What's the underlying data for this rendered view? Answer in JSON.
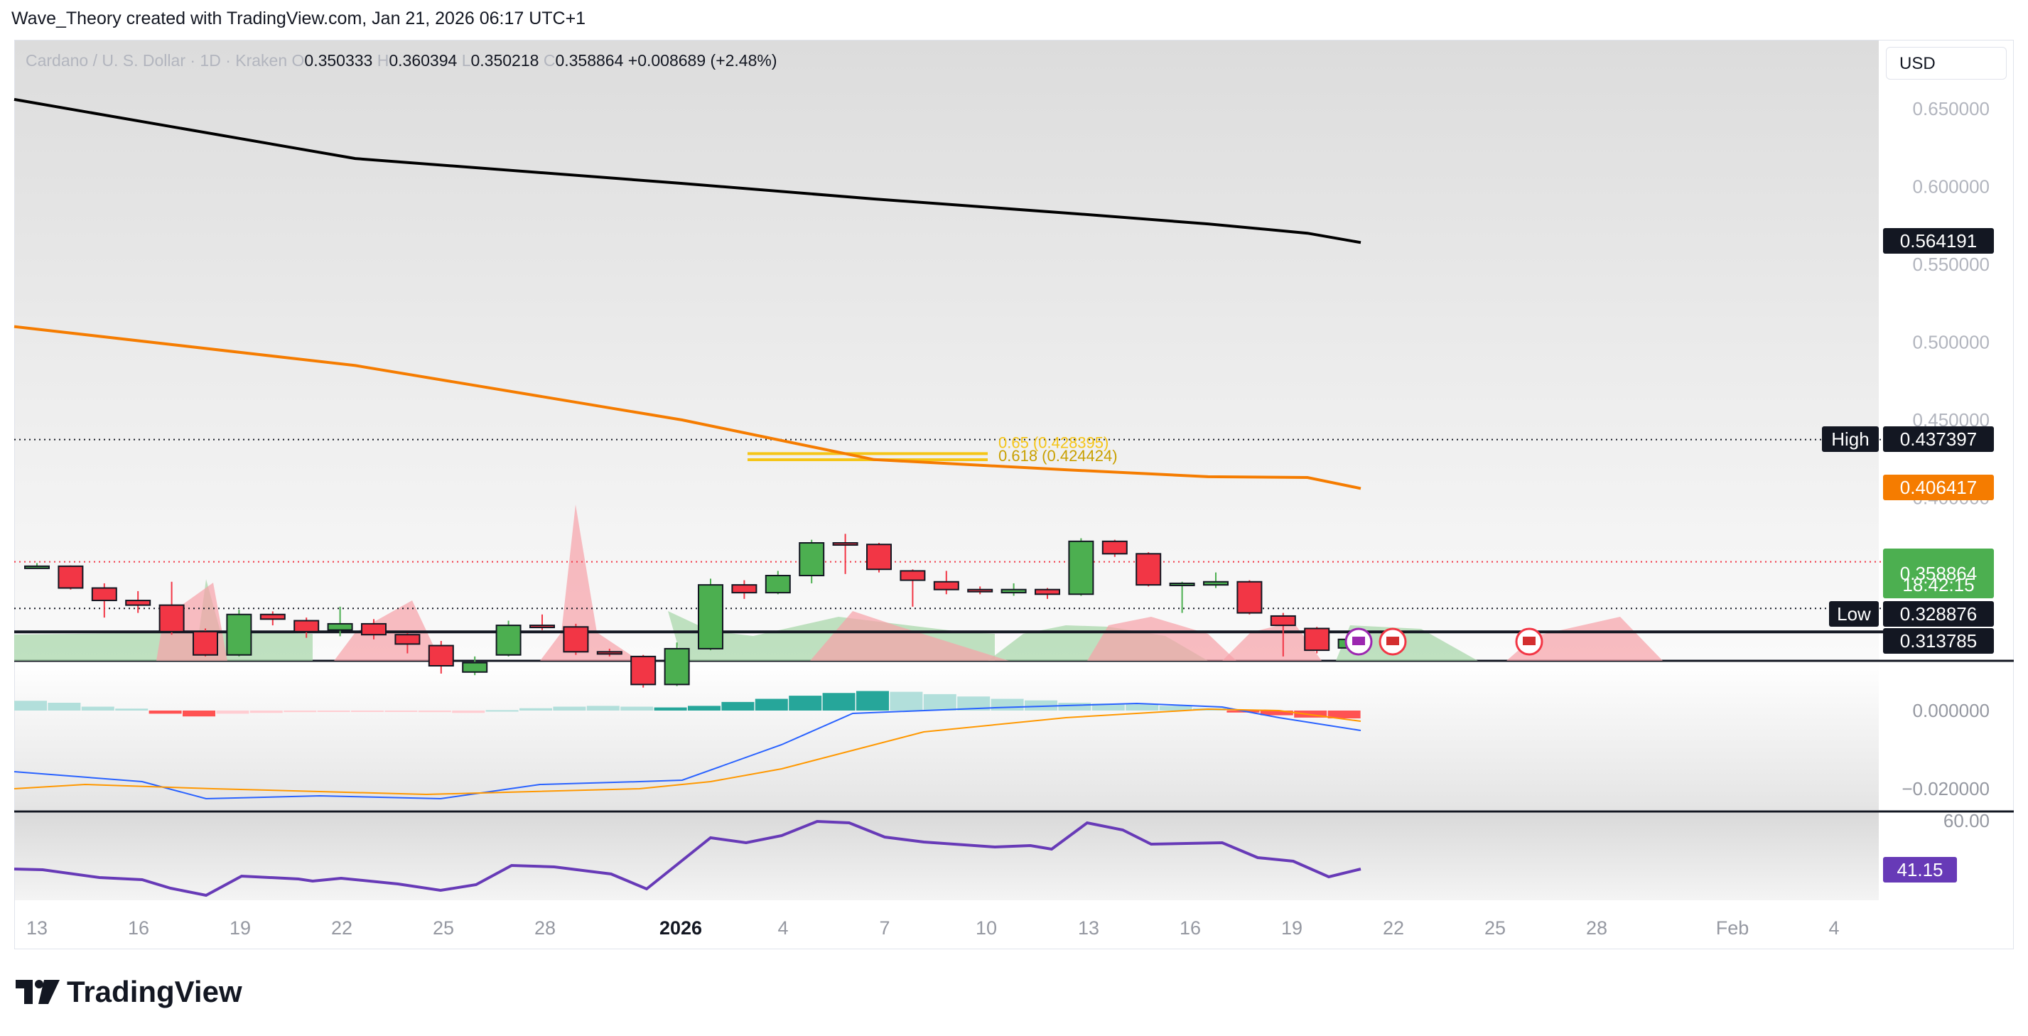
{
  "header": {
    "credit": "Wave_Theory created with TradingView.com, Jan 21, 2026 06:17 UTC+1"
  },
  "legend": {
    "symbol": "Cardano / U. S. Dollar · 1D · Kraken",
    "o_label": "O",
    "o_value": "0.350333",
    "h_label": "H",
    "h_value": "0.360394",
    "l_label": "L",
    "l_value": "0.350218",
    "c_label": "C",
    "c_value": "0.358864",
    "change": "+0.008689 (+2.48%)"
  },
  "currency": "USD",
  "brand": {
    "name": "TradingView"
  },
  "colors": {
    "up": "#4caf50",
    "down": "#f23645",
    "ma200": "#000000",
    "ma50": "#f57c00",
    "fib": "#f5c518",
    "macd": "#2962ff",
    "signal": "#ff9800",
    "rsi": "#673ab7"
  },
  "chart_data": {
    "type": "candlestick",
    "x_ticks": [
      "13",
      "16",
      "19",
      "22",
      "25",
      "28",
      "2026",
      "4",
      "7",
      "10",
      "13",
      "16",
      "19",
      "22",
      "25",
      "28",
      "Feb",
      "4"
    ],
    "y_ticks": [
      "0.650000",
      "0.600000",
      "0.550000",
      "0.500000",
      "0.450000",
      "0.400000"
    ],
    "ylim": [
      0.31,
      0.672
    ],
    "candles": [
      {
        "o": 0.3555,
        "h": 0.358,
        "l": 0.355,
        "c": 0.356
      },
      {
        "o": 0.356,
        "h": 0.3565,
        "l": 0.341,
        "c": 0.342
      },
      {
        "o": 0.342,
        "h": 0.345,
        "l": 0.323,
        "c": 0.334
      },
      {
        "o": 0.334,
        "h": 0.34,
        "l": 0.326,
        "c": 0.331
      },
      {
        "o": 0.331,
        "h": 0.346,
        "l": 0.312,
        "c": 0.314
      },
      {
        "o": 0.314,
        "h": 0.316,
        "l": 0.298,
        "c": 0.299
      },
      {
        "o": 0.299,
        "h": 0.328,
        "l": 0.298,
        "c": 0.325
      },
      {
        "o": 0.325,
        "h": 0.327,
        "l": 0.318,
        "c": 0.322
      },
      {
        "o": 0.321,
        "h": 0.323,
        "l": 0.31,
        "c": 0.314
      },
      {
        "o": 0.315,
        "h": 0.33,
        "l": 0.311,
        "c": 0.319
      },
      {
        "o": 0.319,
        "h": 0.322,
        "l": 0.309,
        "c": 0.312
      },
      {
        "o": 0.312,
        "h": 0.313,
        "l": 0.3,
        "c": 0.306
      },
      {
        "o": 0.305,
        "h": 0.308,
        "l": 0.287,
        "c": 0.292
      },
      {
        "o": 0.288,
        "h": 0.298,
        "l": 0.286,
        "c": 0.294
      },
      {
        "o": 0.299,
        "h": 0.321,
        "l": 0.298,
        "c": 0.318
      },
      {
        "o": 0.318,
        "h": 0.325,
        "l": 0.315,
        "c": 0.317
      },
      {
        "o": 0.317,
        "h": 0.319,
        "l": 0.299,
        "c": 0.301
      },
      {
        "o": 0.301,
        "h": 0.303,
        "l": 0.298,
        "c": 0.3
      },
      {
        "o": 0.298,
        "h": 0.299,
        "l": 0.278,
        "c": 0.28
      },
      {
        "o": 0.28,
        "h": 0.307,
        "l": 0.279,
        "c": 0.303
      },
      {
        "o": 0.303,
        "h": 0.348,
        "l": 0.302,
        "c": 0.344
      },
      {
        "o": 0.344,
        "h": 0.347,
        "l": 0.335,
        "c": 0.339
      },
      {
        "o": 0.339,
        "h": 0.353,
        "l": 0.338,
        "c": 0.35
      },
      {
        "o": 0.35,
        "h": 0.373,
        "l": 0.345,
        "c": 0.371
      },
      {
        "o": 0.371,
        "h": 0.3768,
        "l": 0.351,
        "c": 0.37
      },
      {
        "o": 0.37,
        "h": 0.371,
        "l": 0.352,
        "c": 0.354
      },
      {
        "o": 0.353,
        "h": 0.354,
        "l": 0.33,
        "c": 0.347
      },
      {
        "o": 0.346,
        "h": 0.353,
        "l": 0.338,
        "c": 0.341
      },
      {
        "o": 0.341,
        "h": 0.343,
        "l": 0.338,
        "c": 0.34
      },
      {
        "o": 0.339,
        "h": 0.345,
        "l": 0.337,
        "c": 0.341
      },
      {
        "o": 0.341,
        "h": 0.342,
        "l": 0.335,
        "c": 0.338
      },
      {
        "o": 0.338,
        "h": 0.374,
        "l": 0.337,
        "c": 0.372
      },
      {
        "o": 0.372,
        "h": 0.373,
        "l": 0.362,
        "c": 0.364
      },
      {
        "o": 0.364,
        "h": 0.365,
        "l": 0.343,
        "c": 0.344
      },
      {
        "o": 0.344,
        "h": 0.346,
        "l": 0.326,
        "c": 0.345
      },
      {
        "o": 0.344,
        "h": 0.352,
        "l": 0.342,
        "c": 0.346
      },
      {
        "o": 0.346,
        "h": 0.347,
        "l": 0.325,
        "c": 0.326
      },
      {
        "o": 0.324,
        "h": 0.326,
        "l": 0.298,
        "c": 0.318
      },
      {
        "o": 0.316,
        "h": 0.317,
        "l": 0.3,
        "c": 0.302
      },
      {
        "o": 0.3035,
        "h": 0.31,
        "l": 0.303,
        "c": 0.309
      }
    ],
    "ma200": [
      0.656,
      0.618,
      0.602,
      0.592,
      0.583,
      0.576,
      0.57,
      0.564
    ],
    "ma50": [
      0.51,
      0.485,
      0.45,
      0.4245,
      0.418,
      0.4135,
      0.413,
      0.406
    ],
    "fib_levels": [
      {
        "label": "0.618 (0.424424)",
        "value": 0.424424
      },
      {
        "label": "0.65 (0.428395)",
        "value": 0.428395
      }
    ],
    "price_tags": {
      "ma200": "0.564191",
      "ma50": "0.406417",
      "last": "0.358864",
      "countdown": "18:42:15",
      "high_label": "High",
      "high": "0.437397",
      "low_label": "Low",
      "low": "0.328876",
      "support": "0.313785"
    },
    "macd_ticks": [
      "0.000000",
      "−0.020000"
    ],
    "rsi_ticks": [
      "60.00"
    ],
    "rsi_value": "41.15"
  }
}
